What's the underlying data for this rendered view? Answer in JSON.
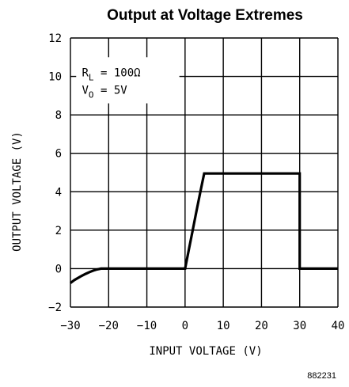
{
  "chart_data": {
    "type": "line",
    "title": "Output at Voltage Extremes",
    "xlabel": "INPUT VOLTAGE (V)",
    "ylabel": "OUTPUT VOLTAGE (V)",
    "xlim": [
      -30,
      40
    ],
    "ylim": [
      -2,
      12
    ],
    "x_ticks": [
      -30,
      -20,
      -10,
      0,
      10,
      20,
      30,
      40
    ],
    "y_ticks": [
      -2,
      0,
      2,
      4,
      6,
      8,
      10,
      12
    ],
    "x_tick_labels": [
      "−30",
      "−20",
      "−10",
      "0",
      "10",
      "20",
      "30",
      "40"
    ],
    "y_tick_labels": [
      "−2",
      "0",
      "2",
      "4",
      "6",
      "8",
      "10",
      "12"
    ],
    "grid": true,
    "legend": null,
    "annotations": {
      "rl_text": "R",
      "rl_sub": "L",
      "rl_value": " = 100Ω",
      "vo_text": "V",
      "vo_sub": "O",
      "vo_value": " = 5V"
    },
    "series": [
      {
        "color": "#000000",
        "points": [
          [
            -30,
            -0.75
          ],
          [
            -29,
            -0.6
          ],
          [
            -28,
            -0.48
          ],
          [
            -27,
            -0.37
          ],
          [
            -26,
            -0.27
          ],
          [
            -25,
            -0.18
          ],
          [
            -24,
            -0.1
          ],
          [
            -23,
            -0.04
          ],
          [
            -22,
            0.0
          ],
          [
            -20,
            0.0
          ],
          [
            -10,
            0.0
          ],
          [
            0,
            0.0
          ],
          [
            1,
            1.0
          ],
          [
            2,
            2.0
          ],
          [
            3,
            3.0
          ],
          [
            4,
            4.0
          ],
          [
            5,
            4.95
          ],
          [
            30,
            4.95
          ],
          [
            30,
            0.0
          ],
          [
            40,
            0.0
          ]
        ]
      }
    ]
  },
  "figure_id": "882231"
}
